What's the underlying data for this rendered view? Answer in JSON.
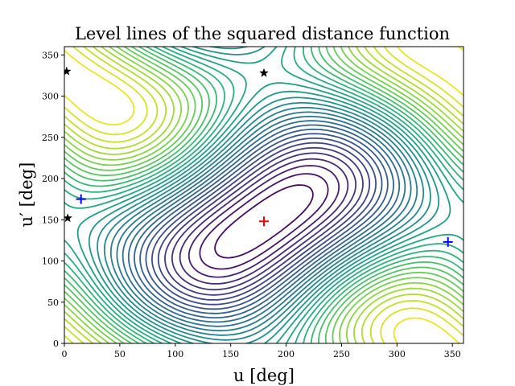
{
  "chart_data": {
    "type": "contour",
    "title": "Level lines of the squared distance function",
    "xlabel": "u [deg]",
    "ylabel": "u′ [deg]",
    "xlim": [
      0,
      360
    ],
    "ylim": [
      0,
      360
    ],
    "x_ticks": [
      "0",
      "50",
      "100",
      "150",
      "200",
      "250",
      "300",
      "350"
    ],
    "y_ticks": [
      "0",
      "50",
      "100",
      "150",
      "200",
      "250",
      "300",
      "350"
    ],
    "colormap": "viridis",
    "grid": false,
    "legend": "none",
    "markers": [
      {
        "kind": "max",
        "color": "#ff0000",
        "symbol": "+",
        "x": 180,
        "y": 148
      },
      {
        "kind": "min",
        "color": "#0000ff",
        "symbol": "+",
        "x": 15,
        "y": 175
      },
      {
        "kind": "min",
        "color": "#0000ff",
        "symbol": "+",
        "x": 346,
        "y": 123
      },
      {
        "kind": "saddle",
        "color": "#000000",
        "symbol": "star",
        "x": 2,
        "y": 330
      },
      {
        "kind": "saddle",
        "color": "#000000",
        "symbol": "star",
        "x": 180,
        "y": 328
      },
      {
        "kind": "saddle",
        "color": "#000000",
        "symbol": "star",
        "x": 3,
        "y": 152
      }
    ]
  }
}
